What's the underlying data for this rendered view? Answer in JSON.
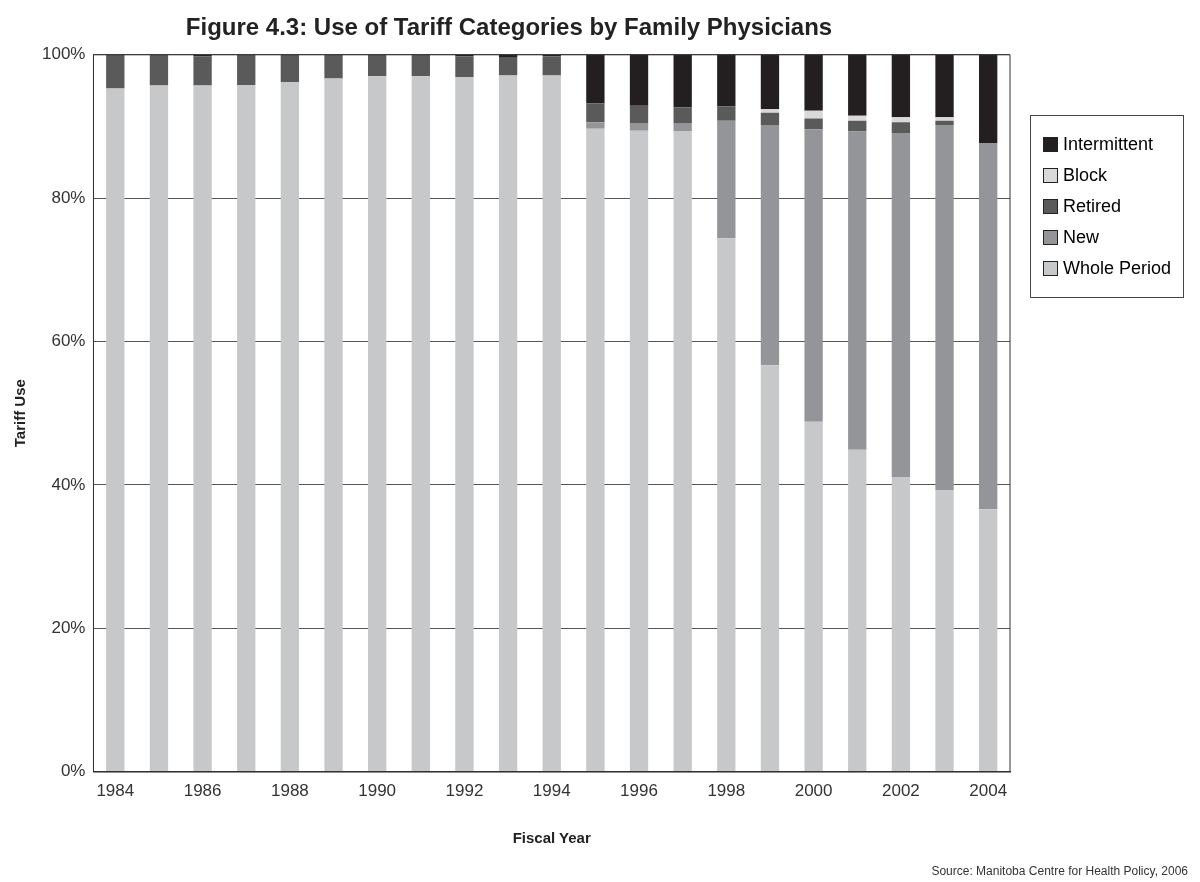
{
  "chart_data": {
    "type": "bar",
    "stacked": true,
    "title": "Figure 4.3: Use of Tariff Categories by Family Physicians",
    "xlabel": "Fiscal Year",
    "ylabel": "Tariff Use",
    "categories": [
      "1984",
      null,
      "1986",
      null,
      "1988",
      null,
      "1990",
      null,
      "1992",
      null,
      "1994",
      null,
      "1996",
      null,
      "1998",
      null,
      "2000",
      null,
      "2002",
      null,
      "2004"
    ],
    "series": [
      {
        "name": "Whole Period",
        "color": "#c7c8ca",
        "values": [
          95.3,
          95.7,
          95.7,
          95.8,
          96.2,
          96.7,
          97.0,
          97.0,
          96.9,
          97.1,
          97.1,
          89.7,
          89.4,
          89.3,
          74.4,
          56.7,
          48.8,
          44.9,
          41.1,
          39.3,
          36.6
        ]
      },
      {
        "name": "New",
        "color": "#939598",
        "values": [
          0,
          0,
          0,
          0,
          0,
          0,
          0,
          0,
          0,
          0,
          0,
          0.9,
          1.1,
          1.2,
          16.4,
          33.5,
          40.8,
          44.4,
          48.0,
          50.9,
          51.1
        ]
      },
      {
        "name": "Retired",
        "color": "#5a5a5a",
        "values": [
          4.7,
          4.3,
          4.1,
          4.2,
          3.8,
          3.3,
          3.0,
          3.0,
          2.9,
          2.5,
          2.7,
          2.6,
          2.4,
          2.2,
          2.0,
          1.7,
          1.5,
          1.5,
          1.5,
          0.6,
          0
        ]
      },
      {
        "name": "Block",
        "color": "#d9d9d9",
        "values": [
          0,
          0,
          0,
          0,
          0,
          0,
          0,
          0,
          0,
          0,
          0,
          0,
          0,
          0,
          0,
          0.5,
          1.1,
          0.7,
          0.7,
          0.5,
          0
        ]
      },
      {
        "name": "Intermittent",
        "color": "#231f20",
        "values": [
          0,
          0,
          0.2,
          0,
          0,
          0,
          0,
          0,
          0.2,
          0.4,
          0.2,
          6.8,
          7.1,
          7.3,
          7.2,
          7.6,
          7.8,
          8.5,
          8.7,
          8.7,
          12.3
        ]
      }
    ],
    "ylim": [
      0,
      100
    ],
    "yticks": [
      {
        "value": 0,
        "label": "0%"
      },
      {
        "value": 20,
        "label": "20%"
      },
      {
        "value": 40,
        "label": "40%"
      },
      {
        "value": 60,
        "label": "60%"
      },
      {
        "value": 80,
        "label": "80%"
      },
      {
        "value": 100,
        "label": "100%"
      }
    ],
    "grid": "y",
    "legend": "right",
    "annotations": [
      "Source: Manitoba Centre for Health Policy, 2006"
    ]
  }
}
